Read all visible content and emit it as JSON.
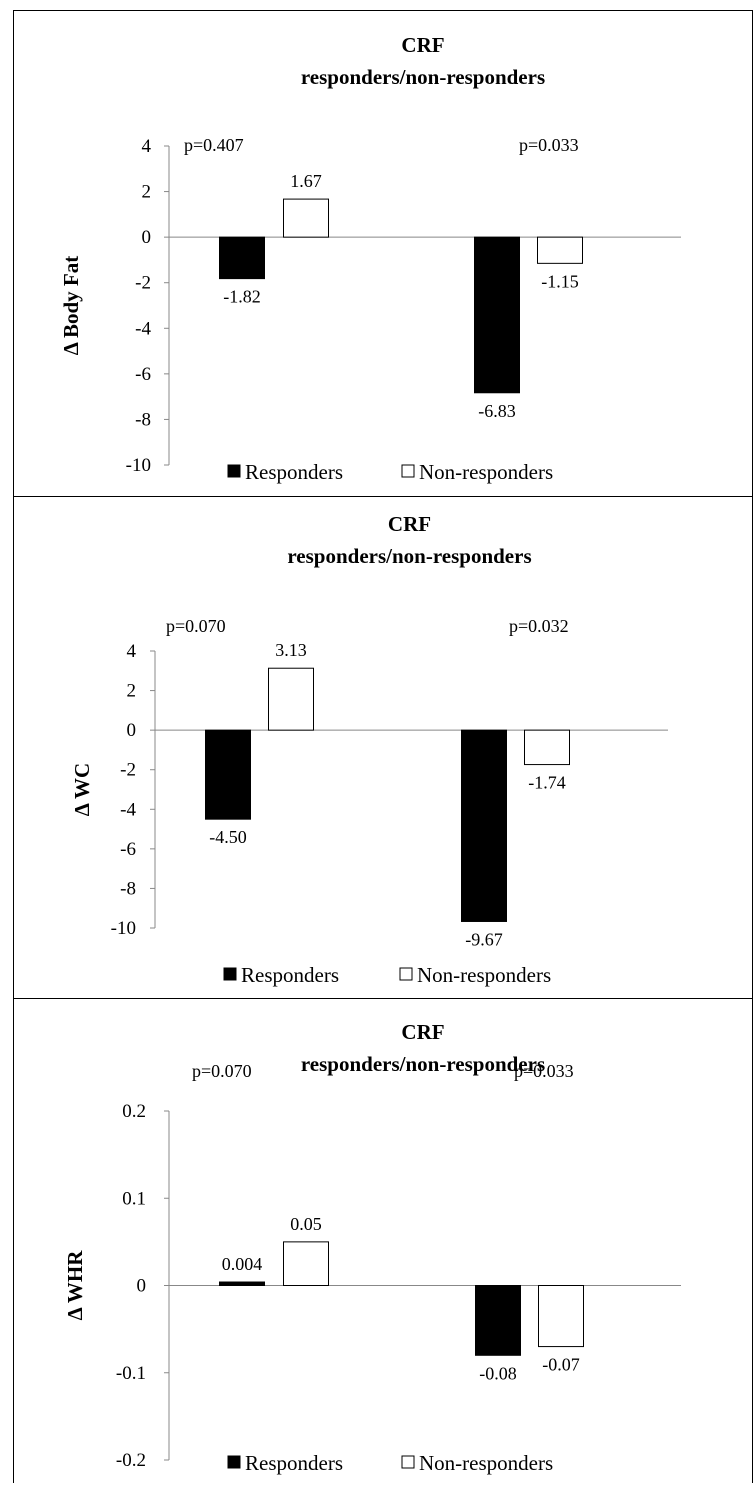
{
  "chart_data": [
    {
      "type": "bar",
      "title": "CRF",
      "subtitle": "responders/non-responders",
      "ylabel": "Δ Body Fat",
      "ylim": [
        -10,
        4
      ],
      "yticks": [
        "4",
        "2",
        "0",
        "-2",
        "-4",
        "-6",
        "-8",
        "-10"
      ],
      "ytick_values": [
        4,
        2,
        0,
        -2,
        -4,
        -6,
        -8,
        -10
      ],
      "groups": [
        {
          "p_label": "p=0.407",
          "values": [
            -1.82,
            1.67
          ],
          "labels": [
            "-1.82",
            "1.67"
          ]
        },
        {
          "p_label": "p=0.033",
          "values": [
            -6.83,
            -1.15
          ],
          "labels": [
            "-6.83",
            "-1.15"
          ]
        }
      ],
      "series": [
        {
          "name": "Responders",
          "color": "#000000"
        },
        {
          "name": "Non-responders",
          "color": "#ffffff"
        }
      ],
      "legend_position": "bottom"
    },
    {
      "type": "bar",
      "title": "CRF",
      "subtitle": "responders/non-responders",
      "ylabel": "Δ WC",
      "ylim": [
        -10,
        4
      ],
      "yticks": [
        "4",
        "2",
        "0",
        "-2",
        "-4",
        "-6",
        "-8",
        "-10"
      ],
      "ytick_values": [
        4,
        2,
        0,
        -2,
        -4,
        -6,
        -8,
        -10
      ],
      "groups": [
        {
          "p_label": "p=0.070",
          "values": [
            -4.5,
            3.13
          ],
          "labels": [
            "-4.50",
            "3.13"
          ]
        },
        {
          "p_label": "p=0.032",
          "values": [
            -9.67,
            -1.74
          ],
          "labels": [
            "-9.67",
            "-1.74"
          ]
        }
      ],
      "series": [
        {
          "name": "Responders",
          "color": "#000000"
        },
        {
          "name": "Non-responders",
          "color": "#ffffff"
        }
      ],
      "legend_position": "bottom"
    },
    {
      "type": "bar",
      "title": "CRF",
      "subtitle": "responders/non-responders",
      "ylabel": "Δ WHR",
      "ylim": [
        -0.2,
        0.2
      ],
      "yticks": [
        "0.2",
        "0.1",
        "0",
        "-0.1",
        "-0.2"
      ],
      "ytick_values": [
        0.2,
        0.1,
        0,
        -0.1,
        -0.2
      ],
      "groups": [
        {
          "p_label": "p=0.070",
          "values": [
            0.004,
            0.05
          ],
          "labels": [
            "0.004",
            "0.05"
          ]
        },
        {
          "p_label": "p=0.033",
          "values": [
            -0.08,
            -0.07
          ],
          "labels": [
            "-0.08",
            "-0.07"
          ]
        }
      ],
      "series": [
        {
          "name": "Responders",
          "color": "#000000"
        },
        {
          "name": "Non-responders",
          "color": "#ffffff"
        }
      ],
      "legend_position": "bottom"
    }
  ]
}
